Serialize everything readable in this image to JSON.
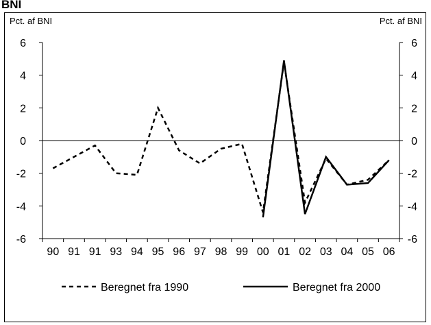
{
  "chart_data": {
    "type": "line",
    "title": "BNI",
    "y_label": "Pct. af BNI",
    "y2_label": "Pct. af BNI",
    "categories": [
      "90",
      "91",
      "91",
      "93",
      "94",
      "95",
      "96",
      "97",
      "98",
      "99",
      "00",
      "01",
      "02",
      "03",
      "04",
      "05",
      "06"
    ],
    "series": [
      {
        "name": "Beregnet fra 1990",
        "color": "#000000",
        "dash": true,
        "values": [
          -1.7,
          -1.0,
          -0.3,
          -2.0,
          -2.1,
          2.0,
          -0.6,
          -1.4,
          -0.5,
          -0.2,
          -4.4,
          4.8,
          -3.8,
          -1.1,
          -2.7,
          -2.4,
          -1.2
        ]
      },
      {
        "name": "Beregnet fra 2000",
        "color": "#000000",
        "dash": false,
        "values": [
          null,
          null,
          null,
          null,
          null,
          null,
          null,
          null,
          null,
          null,
          -4.7,
          4.9,
          -4.5,
          -1.0,
          -2.7,
          -2.6,
          -1.2
        ]
      }
    ],
    "ylim": [
      -6,
      6
    ],
    "yticks": [
      -6,
      -4,
      -2,
      0,
      2,
      4,
      6
    ],
    "y2lim": [
      -6,
      6
    ],
    "y2ticks": [
      -6,
      -4,
      -2,
      0,
      2,
      4,
      6
    ],
    "zero_line": true
  }
}
